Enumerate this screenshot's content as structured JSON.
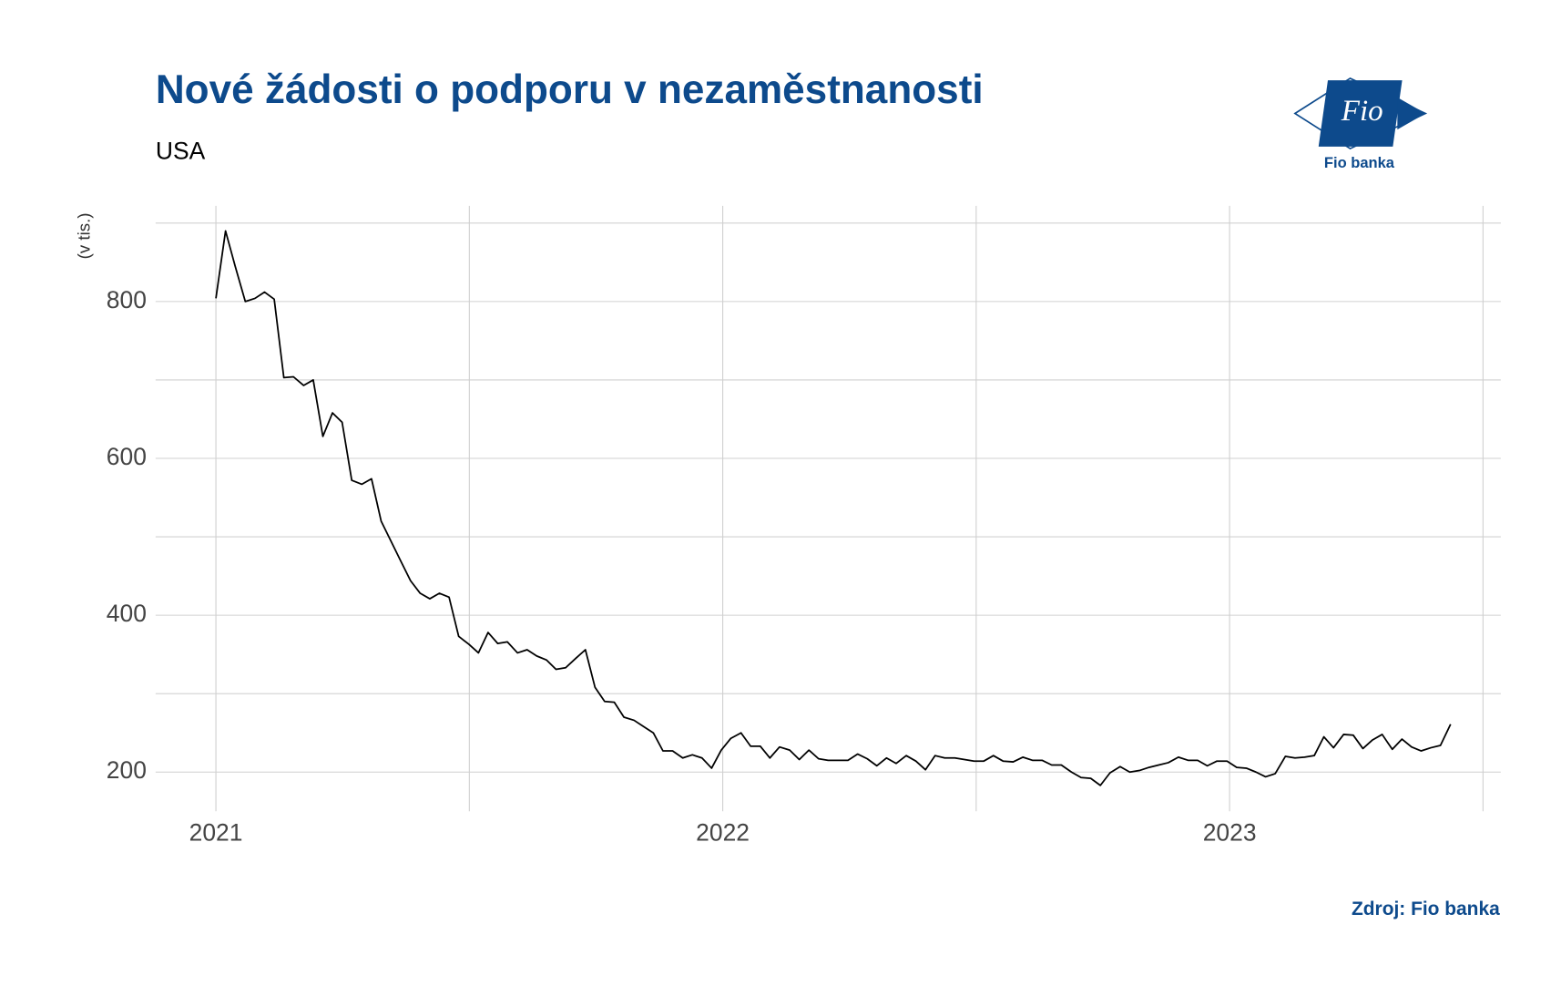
{
  "chart_data": {
    "type": "line",
    "title": "Nové žádosti o podporu v nezaměstnanosti",
    "subtitle": "USA",
    "y_label": "(v tis.)",
    "source": "Zdroj: Fio banka",
    "x": [
      2021.0,
      2021.019,
      2021.038,
      2021.058,
      2021.077,
      2021.096,
      2021.115,
      2021.134,
      2021.153,
      2021.173,
      2021.192,
      2021.211,
      2021.23,
      2021.249,
      2021.268,
      2021.288,
      2021.307,
      2021.326,
      2021.345,
      2021.364,
      2021.384,
      2021.403,
      2021.422,
      2021.441,
      2021.46,
      2021.479,
      2021.499,
      2021.518,
      2021.537,
      2021.556,
      2021.575,
      2021.595,
      2021.614,
      2021.633,
      2021.652,
      2021.671,
      2021.69,
      2021.71,
      2021.729,
      2021.748,
      2021.767,
      2021.786,
      2021.805,
      2021.825,
      2021.844,
      2021.863,
      2021.882,
      2021.901,
      2021.921,
      2021.94,
      2021.959,
      2021.978,
      2021.997,
      2022.016,
      2022.036,
      2022.055,
      2022.074,
      2022.093,
      2022.112,
      2022.132,
      2022.151,
      2022.17,
      2022.189,
      2022.208,
      2022.227,
      2022.247,
      2022.266,
      2022.285,
      2022.304,
      2022.323,
      2022.342,
      2022.362,
      2022.381,
      2022.4,
      2022.419,
      2022.438,
      2022.458,
      2022.477,
      2022.496,
      2022.515,
      2022.534,
      2022.553,
      2022.573,
      2022.592,
      2022.611,
      2022.63,
      2022.649,
      2022.668,
      2022.688,
      2022.707,
      2022.726,
      2022.745,
      2022.764,
      2022.784,
      2022.803,
      2022.822,
      2022.841,
      2022.86,
      2022.879,
      2022.899,
      2022.918,
      2022.937,
      2022.956,
      2022.975,
      2022.995,
      2023.014,
      2023.033,
      2023.052,
      2023.071,
      2023.09,
      2023.11,
      2023.129,
      2023.148,
      2023.167,
      2023.186,
      2023.205,
      2023.225,
      2023.244,
      2023.263,
      2023.282,
      2023.301,
      2023.321,
      2023.34,
      2023.359,
      2023.378,
      2023.397,
      2023.416,
      2023.436
    ],
    "series": [
      {
        "color": "#000000",
        "values": [
          804,
          890,
          845,
          800,
          804,
          812,
          803,
          703,
          704,
          693,
          700,
          628,
          658,
          646,
          572,
          567,
          574,
          520,
          495,
          470,
          444,
          428,
          421,
          428,
          423,
          373,
          363,
          352,
          378,
          364,
          366,
          352,
          356,
          348,
          343,
          331,
          333,
          345,
          356,
          308,
          290,
          289,
          270,
          266,
          258,
          250,
          227,
          227,
          218,
          222,
          218,
          205,
          228,
          243,
          250,
          233,
          233,
          218,
          232,
          228,
          216,
          228,
          217,
          215,
          215,
          215,
          223,
          217,
          208,
          218,
          211,
          221,
          214,
          203,
          221,
          218,
          218,
          216,
          214,
          214,
          221,
          214,
          213,
          219,
          215,
          215,
          209,
          209,
          200,
          193,
          192,
          183,
          199,
          207,
          200,
          202,
          206,
          209,
          212,
          219,
          215,
          215,
          208,
          214,
          214,
          206,
          205,
          200,
          194,
          198,
          220,
          218,
          219,
          221,
          245,
          231,
          248,
          247,
          230,
          241,
          248,
          229,
          242,
          232,
          227,
          231,
          234,
          261
        ]
      }
    ],
    "xlim": [
      2020.881,
      2023.535
    ],
    "xticks": [
      2021,
      2022,
      2023
    ],
    "x_minor_gridlines": [
      2021.5,
      2022.5,
      2023.5
    ],
    "ylim": [
      150,
      922
    ],
    "yticks": [
      200,
      400,
      600,
      800
    ],
    "y_minor_gridlines": [
      300,
      500,
      700,
      900
    ],
    "grid": true
  },
  "logo": {
    "mark": "Fio",
    "name": "Fio banka"
  }
}
